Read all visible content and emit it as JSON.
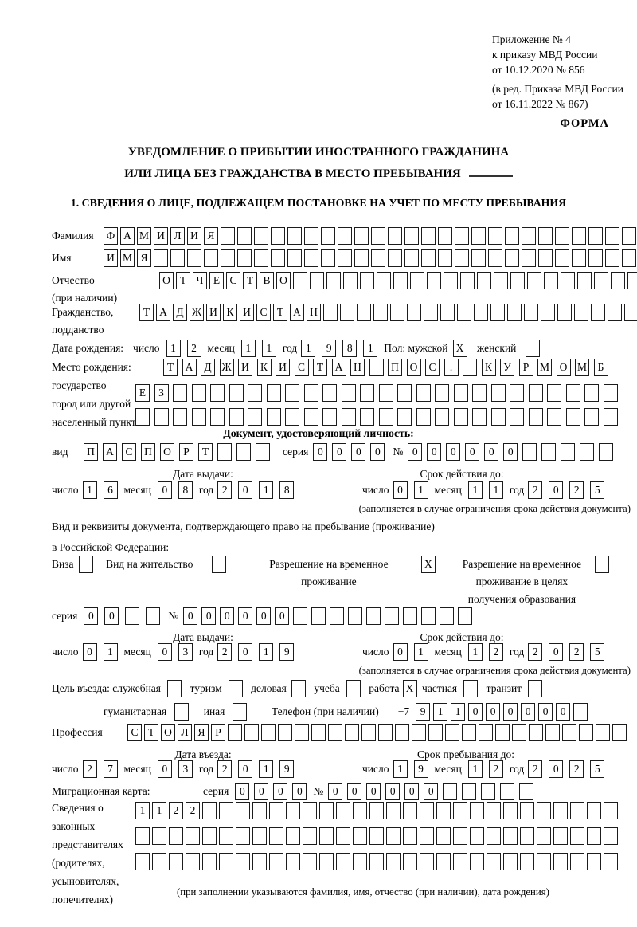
{
  "header": {
    "appendix_lines": [
      "Приложение № 4",
      "к приказу МВД России",
      "от 10.12.2020 № 856"
    ],
    "amendment_lines": [
      "(в ред. Приказа МВД России",
      "от 16.11.2022 № 867)"
    ],
    "form_label": "ФОРМА"
  },
  "title": {
    "line1": "УВЕДОМЛЕНИЕ О ПРИБЫТИИ ИНОСТРАННОГО ГРАЖДАНИНА",
    "line2": "ИЛИ ЛИЦА БЕЗ ГРАЖДАНСТВА В МЕСТО ПРЕБЫВАНИЯ"
  },
  "section1_heading": "1. СВЕДЕНИЯ О ЛИЦЕ, ПОДЛЕЖАЩЕМ ПОСТАНОВКЕ НА УЧЕТ ПО МЕСТУ ПРЕБЫВАНИЯ",
  "labels": {
    "day": "число",
    "month": "месяц",
    "year": "год",
    "seriya": "серия",
    "number": "№",
    "issue_date": "Дата выдачи:",
    "valid_until": "Срок действия до:",
    "entry_date": "Дата въезда:",
    "stay_until": "Срок пребывания до:",
    "restriction_note": "(заполняется в случае ограничения срока действия документа)"
  },
  "person": {
    "surname": {
      "label": "Фамилия",
      "n": 32,
      "v": "ФАМИЛИЯ"
    },
    "name": {
      "label": "Имя",
      "n": 32,
      "v": "ИМЯ"
    },
    "patronymic": {
      "label1": "Отчество",
      "label2": "(при наличии)",
      "n": 29,
      "v": "ОТЧЕСТВО"
    },
    "citizenship": {
      "label1": "Гражданство,",
      "label2": "подданство",
      "n": 30,
      "v": "ТАДЖИКИСТАН"
    },
    "birth_date_label": "Дата рождения:",
    "birth": {
      "day": {
        "n": 2,
        "v": "12"
      },
      "month": {
        "n": 2,
        "v": "11"
      },
      "year": {
        "n": 4,
        "v": "1981"
      }
    },
    "sex": {
      "label": "Пол: мужской",
      "male": {
        "n": 1,
        "v": "X"
      },
      "female_label": "женский",
      "female": {
        "n": 1,
        "v": ""
      }
    },
    "birth_place": {
      "label_lines": [
        "Место рождения:",
        "государство",
        "город или другой",
        "населенный пункт"
      ],
      "row1": {
        "n": 24,
        "v": "ТАДЖИКИСТАН ПОС. КУРМОМБ"
      },
      "row2": {
        "n": 26,
        "v": "ЕЗ"
      },
      "row3": {
        "n": 26,
        "v": ""
      }
    }
  },
  "identity_doc": {
    "heading": "Документ, удостоверяющий личность:",
    "kind_label": "вид",
    "kind": {
      "n": 10,
      "v": "ПАСПОРТ"
    },
    "seriya": {
      "n": 4,
      "v": "0000"
    },
    "number": {
      "n": 11,
      "v": "000000"
    },
    "issue": {
      "day": {
        "n": 2,
        "v": "16"
      },
      "month": {
        "n": 2,
        "v": "08"
      },
      "year": {
        "n": 4,
        "v": "2018"
      }
    },
    "valid": {
      "day": {
        "n": 2,
        "v": "01"
      },
      "month": {
        "n": 2,
        "v": "11"
      },
      "year": {
        "n": 4,
        "v": "2025"
      }
    }
  },
  "residence_doc": {
    "intro1": "Вид и реквизиты документа, подтверждающего право на пребывание (проживание)",
    "intro2": "в Российской Федерации:",
    "visa": {
      "label": "Виза",
      "n": 1,
      "v": ""
    },
    "residence_permit": {
      "label": "Вид на жительство",
      "n": 1,
      "v": ""
    },
    "temp_residence": {
      "label_lines": [
        "Разрешение на временное",
        "проживание"
      ],
      "n": 1,
      "v": "X"
    },
    "temp_residence_edu": {
      "label_lines": [
        "Разрешение на временное",
        "проживание в целях",
        "получения образования"
      ],
      "n": 1,
      "v": ""
    },
    "seriya": {
      "n": 4,
      "v": "00"
    },
    "number": {
      "n": 16,
      "v": "000000"
    },
    "issue": {
      "day": {
        "n": 2,
        "v": "01"
      },
      "month": {
        "n": 2,
        "v": "03"
      },
      "year": {
        "n": 4,
        "v": "2019"
      }
    },
    "valid": {
      "day": {
        "n": 2,
        "v": "01"
      },
      "month": {
        "n": 2,
        "v": "12"
      },
      "year": {
        "n": 4,
        "v": "2025"
      }
    }
  },
  "visit": {
    "purpose_label": "Цель въезда: служебная",
    "options_row1": [
      {
        "label": "туризм",
        "n": 1,
        "v": ""
      },
      {
        "label": "деловая",
        "n": 1,
        "v": ""
      },
      {
        "label": "учеба",
        "n": 1,
        "v": ""
      },
      {
        "label": "работа",
        "n": 1,
        "v": "X"
      },
      {
        "label": "частная",
        "n": 1,
        "v": ""
      },
      {
        "label": "транзит",
        "n": 1,
        "v": ""
      }
    ],
    "purpose_first": {
      "n": 1,
      "v": ""
    },
    "options_row2": [
      {
        "label": "гуманитарная",
        "n": 1,
        "v": ""
      },
      {
        "label": "иная",
        "n": 1,
        "v": ""
      }
    ],
    "phone_label": "Телефон (при наличии)",
    "phone_prefix": "+7",
    "phone": {
      "n": 10,
      "v": "911000000"
    },
    "profession_label": "Профессия",
    "profession": {
      "n": 30,
      "v": "СТОЛЯР"
    },
    "entry": {
      "day": {
        "n": 2,
        "v": "27"
      },
      "month": {
        "n": 2,
        "v": "03"
      },
      "year": {
        "n": 4,
        "v": "2019"
      }
    },
    "stay": {
      "day": {
        "n": 2,
        "v": "19"
      },
      "month": {
        "n": 2,
        "v": "12"
      },
      "year": {
        "n": 4,
        "v": "2025"
      }
    }
  },
  "migration_card": {
    "label": "Миграционная карта:",
    "seriya": {
      "n": 4,
      "v": "0000"
    },
    "number": {
      "n": 11,
      "v": "000000"
    }
  },
  "representatives": {
    "label_lines": [
      "Сведения о",
      "законных",
      "представителях",
      "(родителях,",
      "усыновителях,",
      "попечителях)"
    ],
    "rows": [
      {
        "n": 29,
        "v": "1122"
      },
      {
        "n": 29,
        "v": ""
      },
      {
        "n": 29,
        "v": ""
      }
    ],
    "note": "(при заполнении указываются фамилия, имя, отчество (при наличии), дата рождения)"
  }
}
